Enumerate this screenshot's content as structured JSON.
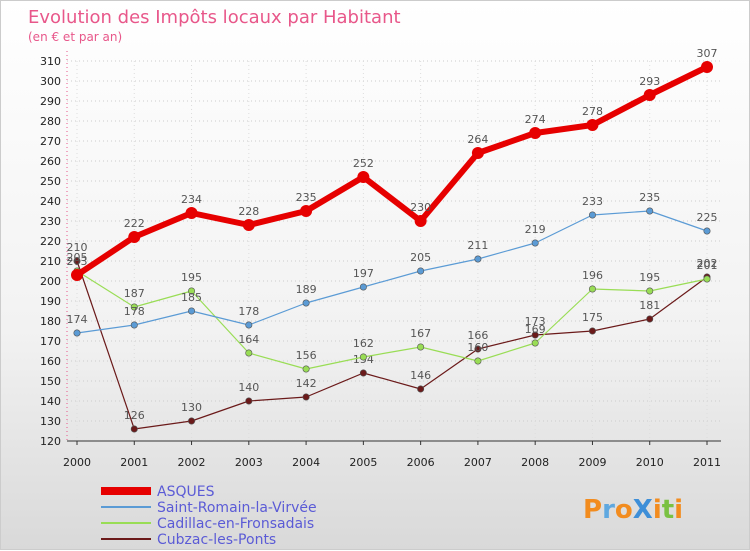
{
  "chart_data": {
    "type": "line",
    "title": "Evolution des Impôts locaux par Habitant",
    "subtitle": "(en € et par an)",
    "x": [
      "2000",
      "2001",
      "2002",
      "2003",
      "2004",
      "2005",
      "2006",
      "2007",
      "2008",
      "2009",
      "2010",
      "2011"
    ],
    "ylim": [
      120,
      310
    ],
    "yticks": [
      120,
      130,
      140,
      150,
      160,
      170,
      180,
      190,
      200,
      210,
      220,
      230,
      240,
      250,
      260,
      270,
      280,
      290,
      300,
      310
    ],
    "grid": "horizontal-dotted",
    "legend_position": "bottom-left",
    "series": [
      {
        "name": "ASQUES",
        "color": "#e60000",
        "values": [
          203,
          222,
          234,
          228,
          235,
          252,
          230,
          264,
          274,
          278,
          293,
          307
        ]
      },
      {
        "name": "Saint-Romain-la-Virvée",
        "color": "#5b9bd5",
        "values": [
          174,
          178,
          185,
          178,
          189,
          197,
          205,
          211,
          219,
          233,
          235,
          225
        ]
      },
      {
        "name": "Cadillac-en-Fronsadais",
        "color": "#99dd55",
        "values": [
          205,
          187,
          195,
          164,
          156,
          162,
          167,
          160,
          169,
          196,
          195,
          201
        ]
      },
      {
        "name": "Cubzac-les-Ponts",
        "color": "#6b1a1a",
        "values": [
          210,
          126,
          130,
          140,
          142,
          154,
          146,
          166,
          173,
          175,
          181,
          202
        ]
      }
    ]
  },
  "logo": {
    "text": "ProXiti"
  }
}
